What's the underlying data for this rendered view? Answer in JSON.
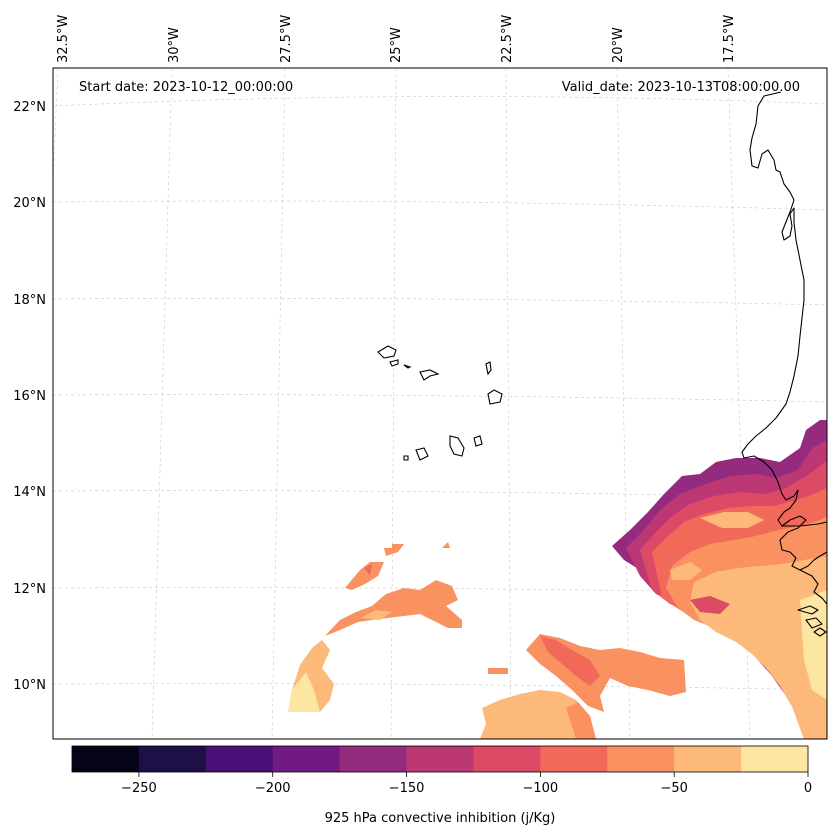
{
  "map": {
    "start_label": "Start date: 2023-10-12_00:00:00",
    "valid_label": "Valid_date: 2023-10-13T08:00:00.00",
    "lon_labels": [
      "32.5°W",
      "30°W",
      "27.5°W",
      "25°W",
      "22.5°W",
      "20°W",
      "17.5°W"
    ],
    "lat_labels": [
      "22°N",
      "20°N",
      "18°N",
      "16°N",
      "14°N",
      "12°N",
      "10°N"
    ],
    "extent": {
      "lon_min": -32.5,
      "lon_max": -15.4,
      "lat_min": 8.9,
      "lat_max": 22.8
    }
  },
  "colorbar": {
    "label": "925 hPa convective inhibition (j/Kg)",
    "levels": [
      -275,
      -250,
      -225,
      -200,
      -175,
      -150,
      -125,
      -100,
      -75,
      -50,
      -25,
      0
    ],
    "tick_values": [
      -250,
      -200,
      -150,
      -100,
      -50,
      0
    ],
    "tick_labels": [
      "−250",
      "−200",
      "−150",
      "−100",
      "−50",
      "0"
    ],
    "colors": [
      "#050416",
      "#1e1047",
      "#4b0f78",
      "#711b82",
      "#942b7f",
      "#bb3874",
      "#dd4a66",
      "#f16959",
      "#fa9161",
      "#fdb97a",
      "#fde5a2"
    ]
  }
}
